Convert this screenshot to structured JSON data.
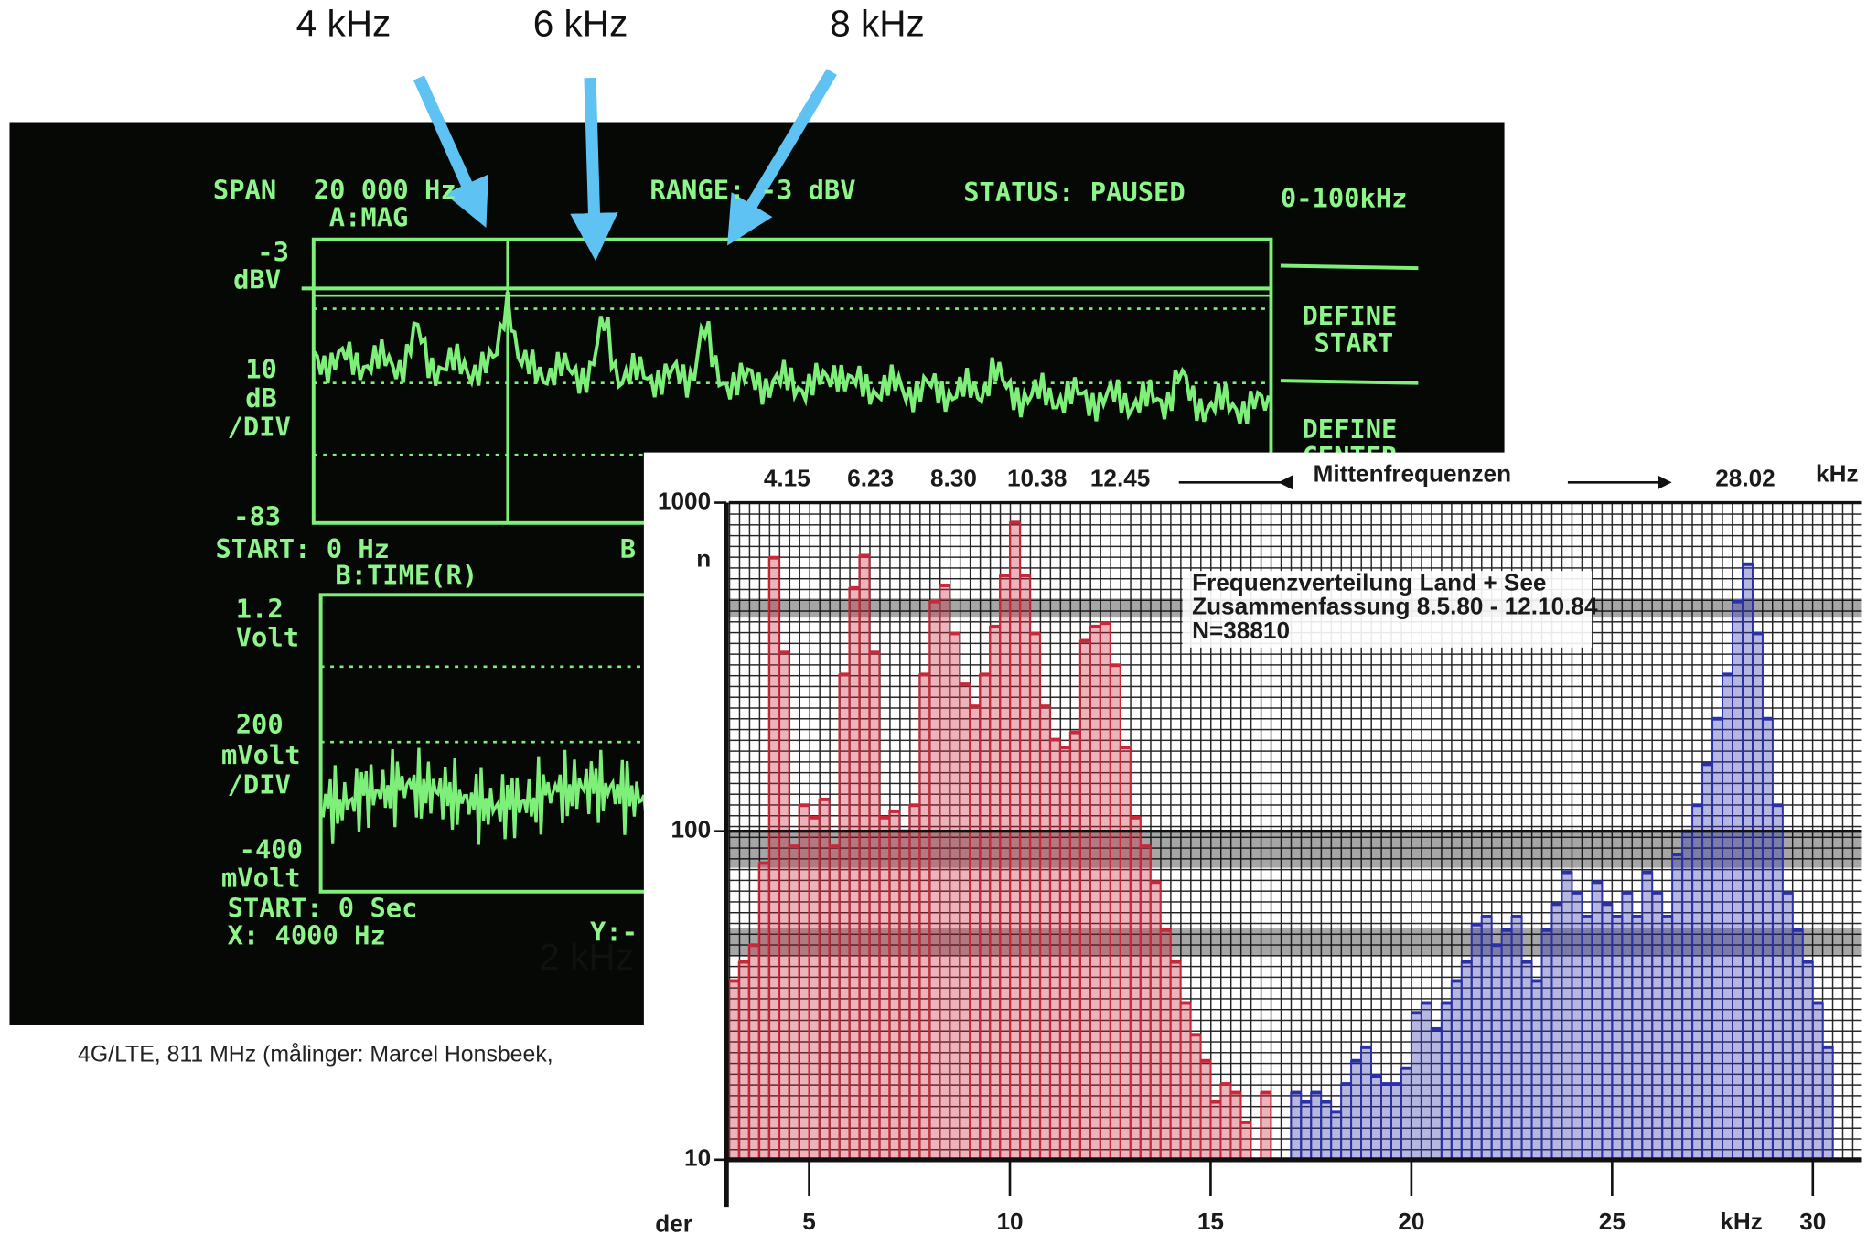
{
  "annotations": [
    {
      "label": "4 kHz"
    },
    {
      "label": "6 kHz"
    },
    {
      "label": "8 kHz"
    },
    {
      "label": "2 kHz"
    }
  ],
  "photo": {
    "texts": [
      "SPAN",
      "20 000 Hz",
      "A:MAG",
      "RANGE: -3 dBV",
      "STATUS: PAUSED",
      "0-100kHz",
      "-3",
      "dBV",
      "10",
      "dB",
      "/DIV",
      "-83",
      "START: 0 Hz",
      "B:TIME(R)",
      "1.2",
      "Volt",
      "200",
      "mVolt",
      "/DIV",
      "-400",
      "mVolt",
      "START: 0  Sec",
      "X: 4000 Hz",
      "DEFINE",
      "START",
      "DEFINE",
      "CENTER",
      "B",
      "Y:-"
    ],
    "caption": "4G/LTE, 811 MHz (målinger: Marcel Honsbeek,"
  },
  "chart_data": {
    "type": "bar",
    "center_frequencies": [
      {
        "value": 4.15,
        "label": "4.15"
      },
      {
        "value": 6.23,
        "label": "6.23"
      },
      {
        "value": 8.3,
        "label": "8.30"
      },
      {
        "value": 10.38,
        "label": "10.38"
      },
      {
        "value": 12.45,
        "label": "12.45"
      },
      {
        "value": 28.02,
        "label": "28.02"
      }
    ],
    "top_label": "Mittenfrequenzen",
    "top_unit": "kHz",
    "legend_lines": [
      "Frequenzverteilung Land + See",
      "Zusammenfassung  8.5.80  - 12.10.84",
      "N=38810"
    ],
    "x_label": "kHz",
    "x_left_label": "der",
    "y_label": "n",
    "xlim": [
      3,
      31.2
    ],
    "xticks": [
      5,
      10,
      15,
      20,
      25,
      30
    ],
    "ylim": [
      10,
      1000
    ],
    "yticks": [
      10,
      100,
      1000
    ],
    "log_y": true,
    "grid": true,
    "series": [
      {
        "color": "#c8283a",
        "x": [
          3,
          3.25,
          3.5,
          3.75,
          4,
          4.25,
          4.5,
          4.75,
          5,
          5.25,
          5.5,
          5.75,
          6,
          6.25,
          6.5,
          6.75,
          7,
          7.25,
          7.5,
          7.75,
          8,
          8.25,
          8.5,
          8.75,
          9,
          9.25,
          9.5,
          9.75,
          10,
          10.25,
          10.5,
          10.75,
          11,
          11.25,
          11.5,
          11.75,
          12,
          12.25,
          12.5,
          12.75,
          13,
          13.25,
          13.5,
          13.75,
          14,
          14.25,
          14.5,
          14.75,
          15,
          15.25,
          15.5,
          15.75,
          16,
          16.25
        ],
        "values": [
          35,
          40,
          45,
          80,
          680,
          350,
          90,
          120,
          110,
          125,
          90,
          300,
          550,
          690,
          350,
          110,
          115,
          100,
          120,
          300,
          500,
          560,
          400,
          280,
          240,
          300,
          420,
          600,
          870,
          600,
          400,
          240,
          190,
          180,
          200,
          380,
          420,
          430,
          320,
          180,
          110,
          90,
          70,
          50,
          40,
          30,
          24,
          20,
          15,
          17,
          16,
          13,
          null,
          16
        ]
      },
      {
        "color": "#2a30a8",
        "x": [
          17,
          17.25,
          17.5,
          17.75,
          18,
          18.25,
          18.5,
          18.75,
          19,
          19.25,
          19.5,
          19.75,
          20,
          20.25,
          20.5,
          20.75,
          21,
          21.25,
          21.5,
          21.75,
          22,
          22.25,
          22.5,
          22.75,
          23,
          23.25,
          23.5,
          23.75,
          24,
          24.25,
          24.5,
          24.75,
          25,
          25.25,
          25.5,
          25.75,
          26,
          26.25,
          26.5,
          26.75,
          27,
          27.25,
          27.5,
          27.75,
          28,
          28.25,
          28.5,
          28.75,
          29,
          29.25,
          29.5,
          29.75,
          30,
          30.25
        ],
        "values": [
          16,
          15,
          16,
          15,
          14,
          17,
          20,
          22,
          18,
          17,
          17,
          19,
          28,
          30,
          25,
          30,
          35,
          40,
          52,
          55,
          45,
          50,
          55,
          40,
          35,
          50,
          60,
          75,
          65,
          55,
          70,
          60,
          55,
          65,
          55,
          75,
          65,
          55,
          85,
          100,
          120,
          160,
          220,
          300,
          500,
          650,
          400,
          220,
          120,
          65,
          50,
          40,
          30,
          22
        ]
      }
    ]
  }
}
